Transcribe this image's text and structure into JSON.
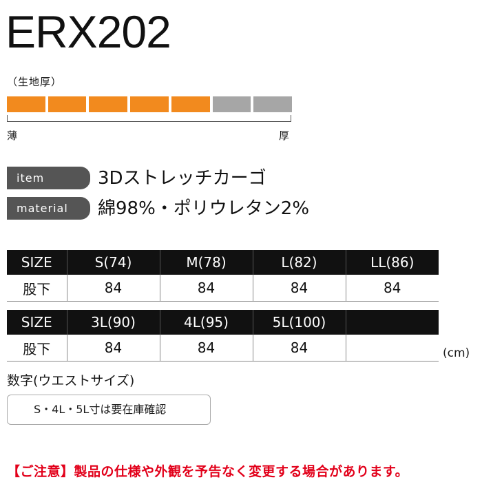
{
  "product_code": "ERX202",
  "thickness": {
    "label": "（生地厚）",
    "level": 5,
    "total": 7,
    "fill_color": "#f28a1e",
    "empty_color": "#a6a6a6",
    "thin_label": "薄",
    "thick_label": "厚"
  },
  "item": {
    "tag": "item",
    "value": "3Dストレッチカーゴ"
  },
  "material": {
    "tag": "material",
    "value": "綿98%・ポリウレタン2%"
  },
  "size_table_1": {
    "header": [
      "SIZE",
      "S(74)",
      "M(78)",
      "L(82)",
      "LL(86)"
    ],
    "row_label": "股下",
    "values": [
      "84",
      "84",
      "84",
      "84"
    ]
  },
  "size_table_2": {
    "header": [
      "SIZE",
      "3L(90)",
      "4L(95)",
      "5L(100)",
      ""
    ],
    "row_label": "股下",
    "values": [
      "84",
      "84",
      "84",
      ""
    ]
  },
  "unit": "(cm)",
  "size_note": "数字(ウエストサイズ)",
  "stock_note": "S・4L・5L寸は要在庫確認",
  "disclaimer": "【ご注意】製品の仕様や外観を予告なく変更する場合があります。"
}
